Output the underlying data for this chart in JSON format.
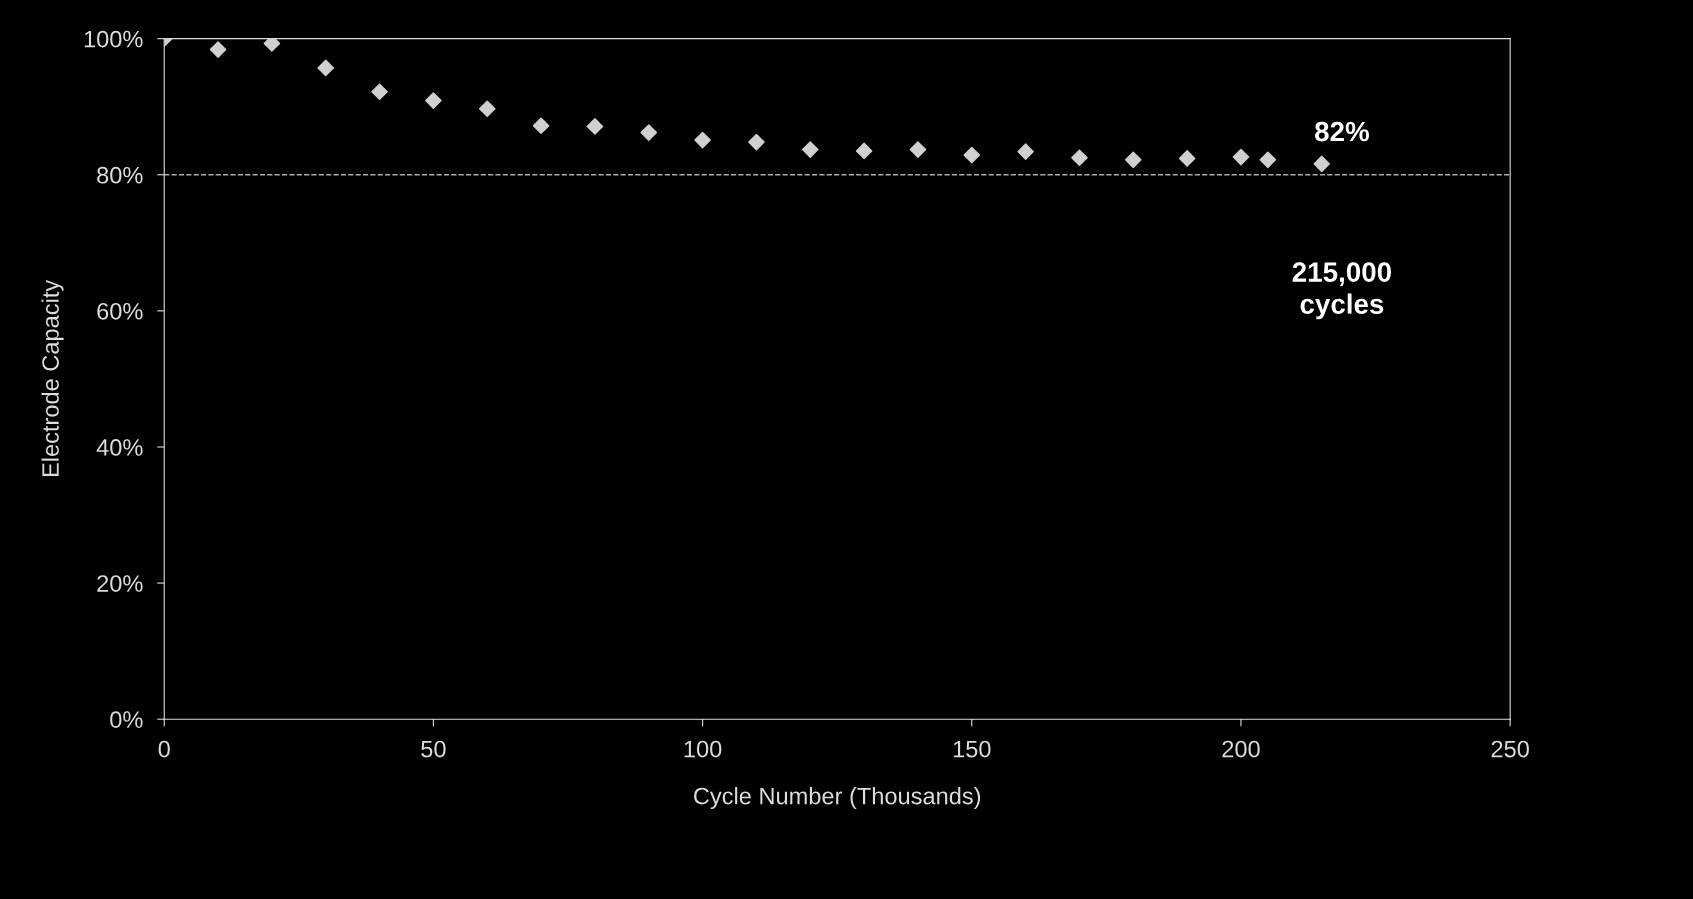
{
  "chart_data": {
    "type": "scatter",
    "xlabel": "Cycle Number (Thousands)",
    "ylabel": "Electrode Capacity",
    "x": [
      0,
      10,
      20,
      30,
      40,
      50,
      60,
      70,
      80,
      90,
      100,
      110,
      120,
      130,
      140,
      150,
      160,
      170,
      180,
      190,
      200,
      205,
      215
    ],
    "series": [
      {
        "color": "#d0d0d0",
        "values": [
          100,
          98.4,
          99.3,
          95.7,
          92.2,
          90.9,
          89.7,
          87.2,
          87.1,
          86.2,
          85.1,
          84.8,
          83.7,
          83.5,
          83.7,
          82.9,
          83.4,
          82.5,
          82.2,
          82.4,
          82.6,
          82.2,
          81.6
        ]
      }
    ],
    "marker": "diamond",
    "grid": false,
    "legend": false,
    "xlim": [
      0,
      250
    ],
    "xticks": [
      0,
      50,
      100,
      150,
      200,
      250
    ],
    "ylim": [
      0,
      100
    ],
    "yticks": [
      {
        "value": 0,
        "label": "0%"
      },
      {
        "value": 20,
        "label": "20%"
      },
      {
        "value": 40,
        "label": "40%"
      },
      {
        "value": 60,
        "label": "60%"
      },
      {
        "value": 80,
        "label": "80%"
      },
      {
        "value": 100,
        "label": "100%"
      }
    ],
    "ref_lines": [
      {
        "axis": "y",
        "value": 80,
        "color": "#aaaaaa",
        "line_style": "dashed"
      }
    ],
    "annotations": [
      "82%",
      "215,000\ncycles"
    ]
  }
}
